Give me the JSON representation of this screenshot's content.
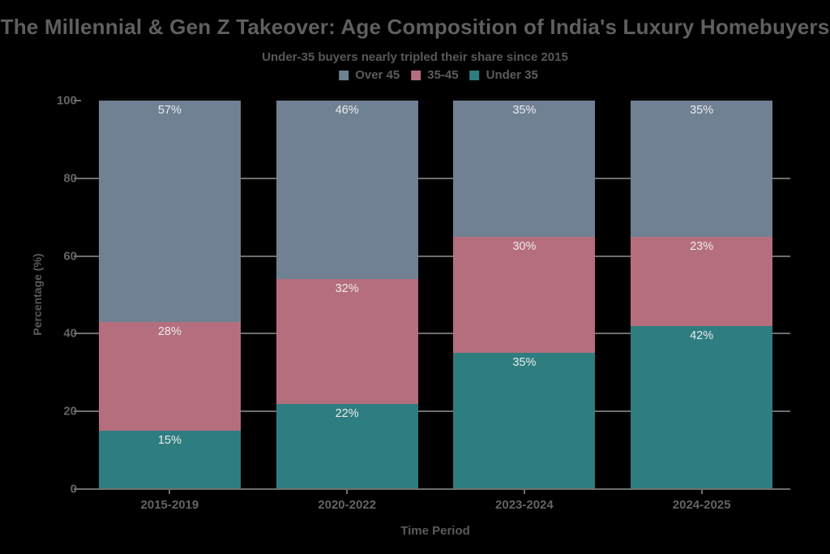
{
  "header": {
    "title": "The Millennial & Gen Z Takeover: Age Composition of India's Luxury Homebuyers",
    "subtitle": "Under-35 buyers nearly tripled their share since 2015"
  },
  "legend": {
    "position": "top-center",
    "items": [
      {
        "label": "Over 45",
        "color": "#6f8193"
      },
      {
        "label": "35-45",
        "color": "#b56e7d"
      },
      {
        "label": "Under 35",
        "color": "#2e7d80"
      }
    ]
  },
  "axes": {
    "x_label": "Time Period",
    "y_label": "Percentage (%)",
    "y_ticks": [
      100,
      80,
      60,
      40,
      20,
      0
    ],
    "grid_ticks": [
      80,
      60,
      40,
      20
    ],
    "grid_on": true
  },
  "colors": {
    "background": "#000000",
    "grid": "#6e6e6e",
    "title_text": "#5f5f5f",
    "tick_text": "#636363",
    "bar_label_text": "#ececec"
  },
  "chart_data": {
    "type": "bar",
    "stacked": true,
    "title": "The Millennial & Gen Z Takeover: Age Composition of India's Luxury Homebuyers",
    "subtitle": "Under-35 buyers nearly tripled their share since 2015",
    "xlabel": "Time Period",
    "ylabel": "Percentage (%)",
    "ylim": [
      0,
      100
    ],
    "legend_position": "top",
    "categories": [
      "2015-2019",
      "2020-2022",
      "2023-2024",
      "2024-2025"
    ],
    "series": [
      {
        "name": "Under 35",
        "color": "#2e7d80",
        "values": [
          15,
          22,
          35,
          42
        ],
        "labels": [
          "15%",
          "22%",
          "35%",
          "42%"
        ]
      },
      {
        "name": "35-45",
        "color": "#b56e7d",
        "values": [
          28,
          32,
          30,
          23
        ],
        "labels": [
          "28%",
          "32%",
          "30%",
          "23%"
        ]
      },
      {
        "name": "Over 45",
        "color": "#6f8193",
        "values": [
          57,
          46,
          35,
          35
        ],
        "labels": [
          "57%",
          "46%",
          "35%",
          "35%"
        ]
      }
    ]
  }
}
